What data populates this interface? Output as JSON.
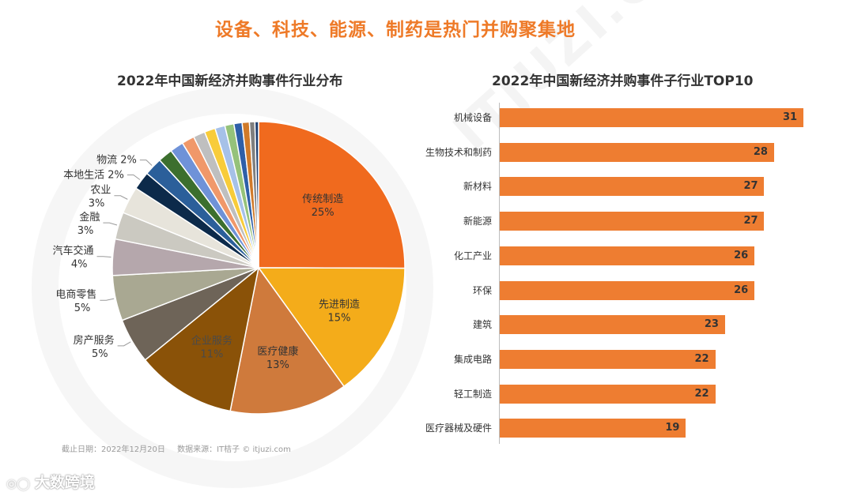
{
  "page": {
    "title": "设备、科技、能源、制药是热门并购聚集地",
    "footnote_date": "截止日期：2022年12月20日",
    "footnote_source": "数据来源：IT桔子 © itjuzi.com",
    "logo_text": "大数跨境",
    "watermark_text": "ITJUZI.COM"
  },
  "chart_data": [
    {
      "type": "pie",
      "title": "2022年中国新经济并购事件行业分布",
      "unit": "%",
      "slices": [
        {
          "label": "传统制造",
          "value": 25,
          "color": "#f06a1e",
          "labeled": true,
          "label_inside": true
        },
        {
          "label": "先进制造",
          "value": 15,
          "color": "#f4ac1a",
          "labeled": true,
          "label_inside": true
        },
        {
          "label": "医疗健康",
          "value": 13,
          "color": "#cf7a3c",
          "labeled": true,
          "label_inside": true
        },
        {
          "label": "企业服务",
          "value": 11,
          "color": "#8a5208",
          "labeled": true,
          "label_inside": true
        },
        {
          "label": "房产服务",
          "value": 5,
          "color": "#6e6458",
          "labeled": true,
          "label_inside": false
        },
        {
          "label": "电商零售",
          "value": 5,
          "color": "#a9a892",
          "labeled": true,
          "label_inside": false
        },
        {
          "label": "汽车交通",
          "value": 4,
          "color": "#b5a7ac",
          "labeled": true,
          "label_inside": false
        },
        {
          "label": "金融",
          "value": 3,
          "color": "#cbc9c1",
          "labeled": true,
          "label_inside": false
        },
        {
          "label": "农业",
          "value": 3,
          "color": "#e7e4db",
          "labeled": true,
          "label_inside": false
        },
        {
          "label": "本地生活",
          "value": 2,
          "color": "#0c2a4a",
          "labeled": true,
          "label_inside": false
        },
        {
          "label": "物流",
          "value": 2,
          "color": "#2b5f9a",
          "labeled": true,
          "label_inside": false
        },
        {
          "label": "",
          "value": 1.6,
          "color": "#3c6f2e",
          "labeled": false
        },
        {
          "label": "",
          "value": 1.5,
          "color": "#6f92d8",
          "labeled": false
        },
        {
          "label": "",
          "value": 1.4,
          "color": "#f0986a",
          "labeled": false
        },
        {
          "label": "",
          "value": 1.3,
          "color": "#bfbfbf",
          "labeled": false
        },
        {
          "label": "",
          "value": 1.2,
          "color": "#f8cc3a",
          "labeled": false
        },
        {
          "label": "",
          "value": 1.1,
          "color": "#a6c1e8",
          "labeled": false
        },
        {
          "label": "",
          "value": 1.0,
          "color": "#95c27a",
          "labeled": false
        },
        {
          "label": "",
          "value": 0.9,
          "color": "#2e5fa8",
          "labeled": false
        },
        {
          "label": "",
          "value": 0.8,
          "color": "#d07a2a",
          "labeled": false
        },
        {
          "label": "",
          "value": 0.6,
          "color": "#7f7f7f",
          "labeled": false
        },
        {
          "label": "",
          "value": 0.4,
          "color": "#1f3f70",
          "labeled": false
        }
      ]
    },
    {
      "type": "bar",
      "orientation": "horizontal",
      "title": "2022年中国新经济并购事件子行业TOP10",
      "categories": [
        "机械设备",
        "生物技术和制药",
        "新材料",
        "新能源",
        "化工产业",
        "环保",
        "建筑",
        "集成电路",
        "轻工制造",
        "医疗器械及硬件"
      ],
      "values": [
        31,
        28,
        27,
        27,
        26,
        26,
        23,
        22,
        22,
        19
      ],
      "xlim": [
        0,
        31
      ],
      "color": "#ee7d31"
    }
  ]
}
